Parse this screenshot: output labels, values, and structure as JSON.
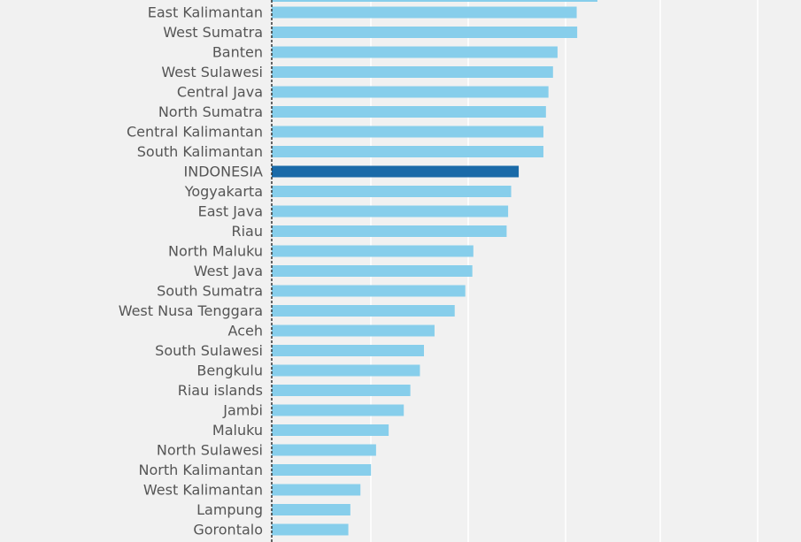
{
  "chart_data": {
    "type": "bar",
    "orientation": "horizontal",
    "categories": [
      "East Kalimantan",
      "West Sumatra",
      "Banten",
      "West Sulawesi",
      "Central Java",
      "North Sumatra",
      "Central Kalimantan",
      "South Kalimantan",
      "INDONESIA",
      "Yogyakarta",
      "East Java",
      "Riau",
      "North Maluku",
      "West Java",
      "South Sumatra",
      "West Nusa Tenggara",
      "Aceh",
      "South Sulawesi",
      "Bengkulu",
      "Riau islands",
      "Jambi",
      "Maluku",
      "North Sulawesi",
      "North Kalimantan",
      "West Kalimantan",
      "Lampung",
      "Gorontalo"
    ],
    "values": [
      60.5,
      60.6,
      56.7,
      55.8,
      54.9,
      54.4,
      53.9,
      53.9,
      49.0,
      47.5,
      46.9,
      46.6,
      40.0,
      39.8,
      38.4,
      36.3,
      32.3,
      30.2,
      29.4,
      27.5,
      26.2,
      23.2,
      20.7,
      19.7,
      17.6,
      15.6,
      15.2
    ],
    "highlight": "INDONESIA",
    "xlim": [
      0,
      105
    ],
    "grid": true,
    "colors": {
      "bar": "#87ceeb",
      "highlight": "#1a6aa8",
      "label": "#555555",
      "grid": "#ffffff",
      "axis": "#333333",
      "background": "#f1f1f1"
    }
  }
}
